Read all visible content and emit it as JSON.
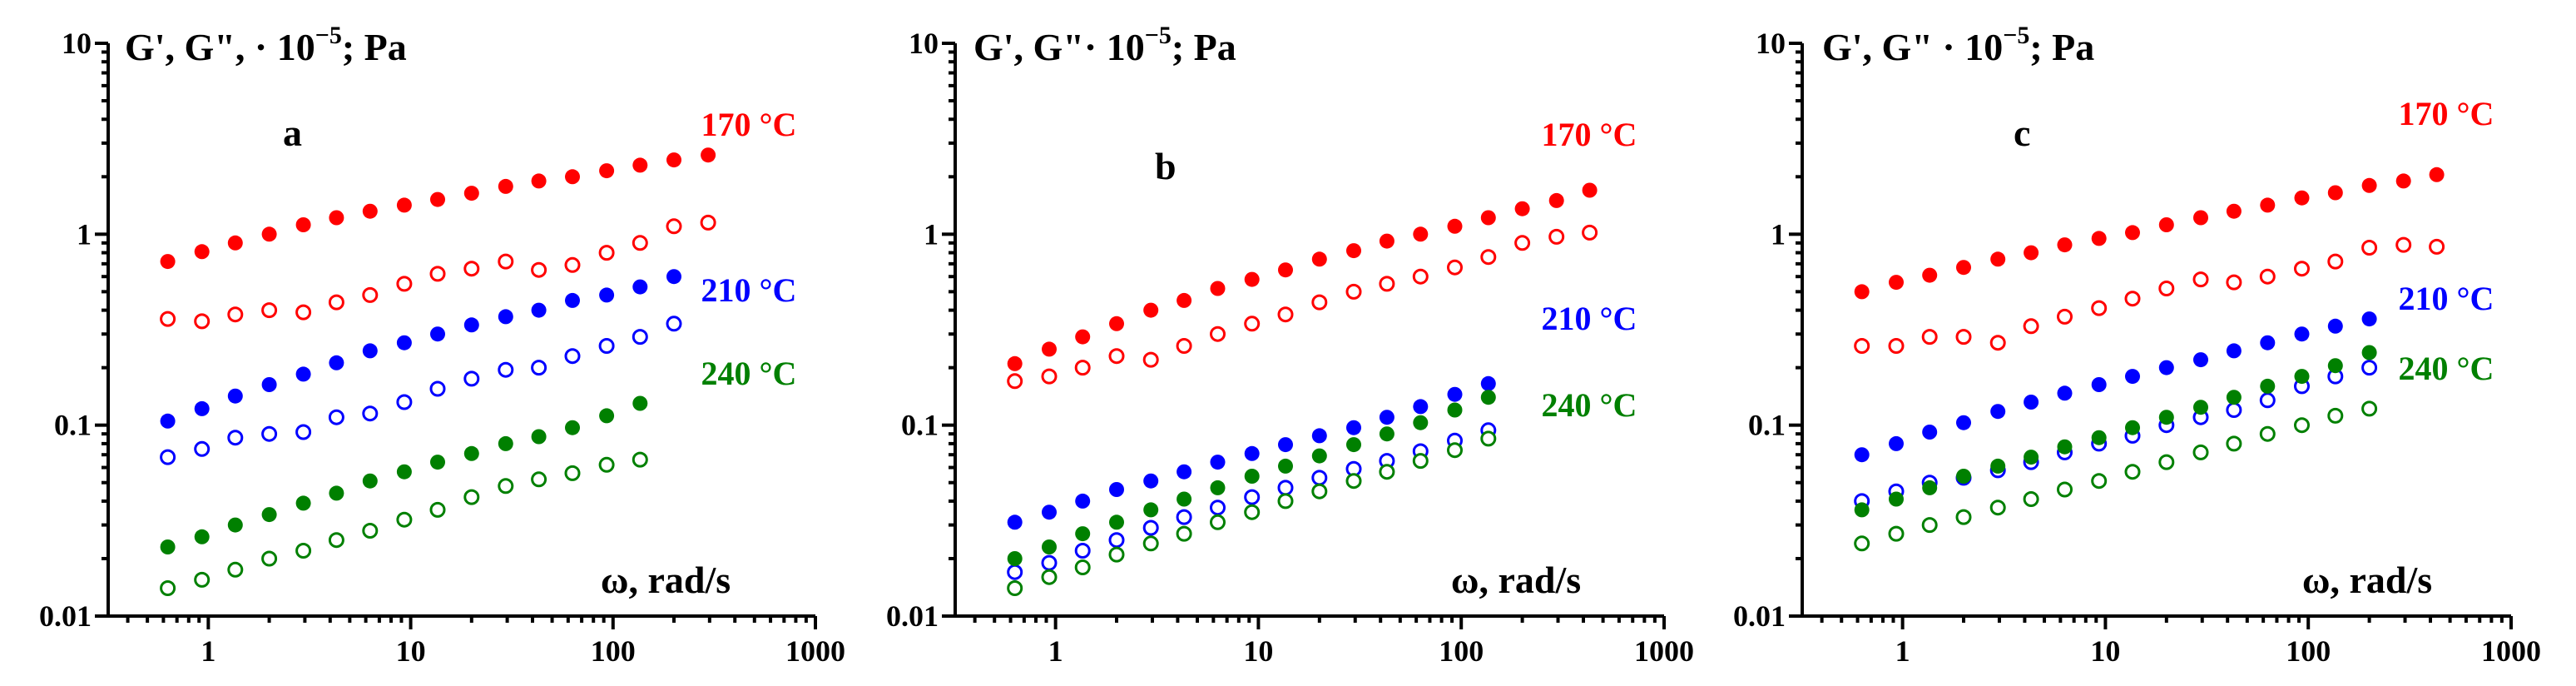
{
  "chart_data": [
    {
      "panel": "a",
      "type": "scatter",
      "title": "G', G\", · 10",
      "title_exp": "−5",
      "title_unit": "; Pa",
      "xlabel": "ω, rad/s",
      "xscale": "log",
      "yscale": "log",
      "xlim": [
        0.32,
        1000
      ],
      "ylim": [
        0.01,
        10
      ],
      "xticks": [
        1,
        10,
        100,
        1000
      ],
      "xtick_labels": [
        "1",
        "10",
        "100",
        "1000"
      ],
      "yticks": [
        0.01,
        0.1,
        1,
        10
      ],
      "ytick_labels": [
        "0.01",
        "0.1",
        "1",
        "10"
      ],
      "series": [
        {
          "name": "G' 170 °C",
          "color": "#ff0000",
          "filled": true,
          "x": [
            0.63,
            0.93,
            1.36,
            2.0,
            2.95,
            4.3,
            6.3,
            9.3,
            13.6,
            20,
            29.5,
            43,
            63,
            93,
            136,
            200,
            295
          ],
          "y": [
            0.72,
            0.81,
            0.9,
            1.0,
            1.12,
            1.22,
            1.32,
            1.42,
            1.52,
            1.64,
            1.78,
            1.9,
            2.0,
            2.15,
            2.3,
            2.45,
            2.6
          ]
        },
        {
          "name": "G\" 170 °C",
          "color": "#ff0000",
          "filled": false,
          "x": [
            0.63,
            0.93,
            1.36,
            2.0,
            2.95,
            4.3,
            6.3,
            9.3,
            13.6,
            20,
            29.5,
            43,
            63,
            93,
            136,
            200,
            295
          ],
          "y": [
            0.36,
            0.35,
            0.38,
            0.4,
            0.39,
            0.44,
            0.48,
            0.55,
            0.62,
            0.66,
            0.72,
            0.65,
            0.69,
            0.8,
            0.9,
            1.1,
            1.15
          ]
        },
        {
          "name": "G' 210 °C",
          "color": "#0000ff",
          "filled": true,
          "x": [
            0.63,
            0.93,
            1.36,
            2.0,
            2.95,
            4.3,
            6.3,
            9.3,
            13.6,
            20,
            29.5,
            43,
            63,
            93,
            136,
            200
          ],
          "y": [
            0.105,
            0.122,
            0.142,
            0.163,
            0.185,
            0.212,
            0.245,
            0.27,
            0.3,
            0.335,
            0.37,
            0.4,
            0.45,
            0.48,
            0.53,
            0.6
          ]
        },
        {
          "name": "G\" 210 °C",
          "color": "#0000ff",
          "filled": false,
          "x": [
            0.63,
            0.93,
            1.36,
            2.0,
            2.95,
            4.3,
            6.3,
            9.3,
            13.6,
            20,
            29.5,
            43,
            63,
            93,
            136,
            200
          ],
          "y": [
            0.068,
            0.075,
            0.086,
            0.09,
            0.092,
            0.11,
            0.115,
            0.132,
            0.155,
            0.175,
            0.195,
            0.2,
            0.23,
            0.26,
            0.29,
            0.34
          ]
        },
        {
          "name": "G' 240 °C",
          "color": "#008000",
          "filled": true,
          "x": [
            0.63,
            0.93,
            1.36,
            2.0,
            2.95,
            4.3,
            6.3,
            9.3,
            13.6,
            20,
            29.5,
            43,
            63,
            93,
            136
          ],
          "y": [
            0.023,
            0.026,
            0.03,
            0.034,
            0.039,
            0.044,
            0.051,
            0.057,
            0.064,
            0.071,
            0.08,
            0.087,
            0.097,
            0.112,
            0.13
          ]
        },
        {
          "name": "G\" 240 °C",
          "color": "#008000",
          "filled": false,
          "x": [
            0.63,
            0.93,
            1.36,
            2.0,
            2.95,
            4.3,
            6.3,
            9.3,
            13.6,
            20,
            29.5,
            43,
            63,
            93,
            136
          ],
          "y": [
            0.014,
            0.0155,
            0.0175,
            0.02,
            0.022,
            0.025,
            0.028,
            0.032,
            0.036,
            0.042,
            0.048,
            0.052,
            0.056,
            0.062,
            0.066
          ]
        }
      ],
      "labels": [
        {
          "text": "170 °C",
          "color": "#ff0000",
          "anchor": "top-right"
        },
        {
          "text": "210 °C",
          "color": "#0000ff",
          "anchor": "middle-right"
        },
        {
          "text": "240 °C",
          "color": "#008000",
          "anchor": "lower-right"
        }
      ]
    },
    {
      "panel": "b",
      "type": "scatter",
      "title": "G', G\"· 10",
      "title_exp": "−5",
      "title_unit": "; Pa",
      "xlabel": "ω, rad/s",
      "xscale": "log",
      "yscale": "log",
      "xlim": [
        0.32,
        1000
      ],
      "ylim": [
        0.01,
        10
      ],
      "xticks": [
        1,
        10,
        100,
        1000
      ],
      "xtick_labels": [
        "1",
        "10",
        "100",
        "1000"
      ],
      "yticks": [
        0.01,
        0.1,
        1,
        10
      ],
      "ytick_labels": [
        "0.01",
        "0.1",
        "1",
        "10"
      ],
      "series": [
        {
          "name": "G' 170 °C",
          "color": "#ff0000",
          "filled": true,
          "x": [
            0.63,
            0.93,
            1.36,
            2.0,
            2.95,
            4.3,
            6.3,
            9.3,
            13.6,
            20,
            29.5,
            43,
            63,
            93,
            136,
            200,
            295,
            430
          ],
          "y": [
            0.21,
            0.25,
            0.29,
            0.34,
            0.4,
            0.45,
            0.52,
            0.58,
            0.65,
            0.74,
            0.82,
            0.92,
            1.0,
            1.1,
            1.22,
            1.36,
            1.5,
            1.7
          ]
        },
        {
          "name": "G\" 170 °C",
          "color": "#ff0000",
          "filled": false,
          "x": [
            0.63,
            0.93,
            1.36,
            2.0,
            2.95,
            4.3,
            6.3,
            9.3,
            13.6,
            20,
            29.5,
            43,
            63,
            93,
            136,
            200,
            295,
            430
          ],
          "y": [
            0.17,
            0.18,
            0.2,
            0.23,
            0.22,
            0.26,
            0.3,
            0.34,
            0.38,
            0.44,
            0.5,
            0.55,
            0.6,
            0.67,
            0.76,
            0.9,
            0.97,
            1.02
          ]
        },
        {
          "name": "G' 210 °C",
          "color": "#0000ff",
          "filled": true,
          "x": [
            0.63,
            0.93,
            1.36,
            2.0,
            2.95,
            4.3,
            6.3,
            9.3,
            13.6,
            20,
            29.5,
            43,
            63,
            93,
            136
          ],
          "y": [
            0.031,
            0.035,
            0.04,
            0.046,
            0.051,
            0.057,
            0.064,
            0.071,
            0.079,
            0.088,
            0.097,
            0.11,
            0.125,
            0.145,
            0.165
          ]
        },
        {
          "name": "G\" 210 °C",
          "color": "#0000ff",
          "filled": false,
          "x": [
            0.63,
            0.93,
            1.36,
            2.0,
            2.95,
            4.3,
            6.3,
            9.3,
            13.6,
            20,
            29.5,
            43,
            63,
            93,
            136
          ],
          "y": [
            0.017,
            0.019,
            0.022,
            0.025,
            0.029,
            0.033,
            0.037,
            0.042,
            0.047,
            0.053,
            0.059,
            0.065,
            0.073,
            0.083,
            0.094
          ]
        },
        {
          "name": "G' 240 °C",
          "color": "#008000",
          "filled": true,
          "x": [
            0.63,
            0.93,
            1.36,
            2.0,
            2.95,
            4.3,
            6.3,
            9.3,
            13.6,
            20,
            29.5,
            43,
            63,
            93,
            136
          ],
          "y": [
            0.02,
            0.023,
            0.027,
            0.031,
            0.036,
            0.041,
            0.047,
            0.054,
            0.061,
            0.069,
            0.079,
            0.09,
            0.103,
            0.12,
            0.14
          ]
        },
        {
          "name": "G\" 240 °C",
          "color": "#008000",
          "filled": false,
          "x": [
            0.63,
            0.93,
            1.36,
            2.0,
            2.95,
            4.3,
            6.3,
            9.3,
            13.6,
            20,
            29.5,
            43,
            63,
            93,
            136
          ],
          "y": [
            0.014,
            0.016,
            0.018,
            0.021,
            0.024,
            0.027,
            0.031,
            0.035,
            0.04,
            0.045,
            0.051,
            0.057,
            0.065,
            0.074,
            0.085
          ]
        }
      ],
      "labels": [
        {
          "text": "170 °C",
          "color": "#ff0000",
          "anchor": "top-right"
        },
        {
          "text": "210 °C",
          "color": "#0000ff",
          "anchor": "middle-right"
        },
        {
          "text": "240 °C",
          "color": "#008000",
          "anchor": "lower-right"
        }
      ]
    },
    {
      "panel": "c",
      "type": "scatter",
      "title": "G', G\" · 10",
      "title_exp": "−5",
      "title_unit": "; Pa",
      "xlabel": "ω, rad/s",
      "xscale": "log",
      "yscale": "log",
      "xlim": [
        0.32,
        1000
      ],
      "ylim": [
        0.01,
        10
      ],
      "xticks": [
        1,
        10,
        100,
        1000
      ],
      "xtick_labels": [
        "1",
        "10",
        "100",
        "1000"
      ],
      "yticks": [
        0.01,
        0.1,
        1,
        10
      ],
      "ytick_labels": [
        "0.01",
        "0.1",
        "1",
        "10"
      ],
      "series": [
        {
          "name": "G' 170 °C",
          "color": "#ff0000",
          "filled": true,
          "x": [
            0.63,
            0.93,
            1.36,
            2.0,
            2.95,
            4.3,
            6.3,
            9.3,
            13.6,
            20,
            29.5,
            43,
            63,
            93,
            136,
            200,
            295,
            430
          ],
          "y": [
            0.5,
            0.56,
            0.61,
            0.67,
            0.74,
            0.8,
            0.88,
            0.95,
            1.02,
            1.12,
            1.22,
            1.32,
            1.42,
            1.55,
            1.65,
            1.8,
            1.9,
            2.05
          ]
        },
        {
          "name": "G\" 170 °C",
          "color": "#ff0000",
          "filled": false,
          "x": [
            0.63,
            0.93,
            1.36,
            2.0,
            2.95,
            4.3,
            6.3,
            9.3,
            13.6,
            20,
            29.5,
            43,
            63,
            93,
            136,
            200,
            295,
            430
          ],
          "y": [
            0.26,
            0.26,
            0.29,
            0.29,
            0.27,
            0.33,
            0.37,
            0.41,
            0.46,
            0.52,
            0.58,
            0.56,
            0.6,
            0.66,
            0.72,
            0.85,
            0.88,
            0.86
          ]
        },
        {
          "name": "G' 210 °C",
          "color": "#0000ff",
          "filled": true,
          "x": [
            0.63,
            0.93,
            1.36,
            2.0,
            2.95,
            4.3,
            6.3,
            9.3,
            13.6,
            20,
            29.5,
            43,
            63,
            93,
            136,
            200
          ],
          "y": [
            0.07,
            0.08,
            0.092,
            0.103,
            0.118,
            0.132,
            0.147,
            0.163,
            0.18,
            0.2,
            0.22,
            0.245,
            0.27,
            0.3,
            0.33,
            0.36
          ]
        },
        {
          "name": "G\" 210 °C",
          "color": "#0000ff",
          "filled": false,
          "x": [
            0.63,
            0.93,
            1.36,
            2.0,
            2.95,
            4.3,
            6.3,
            9.3,
            13.6,
            20,
            29.5,
            43,
            63,
            93,
            136,
            200
          ],
          "y": [
            0.04,
            0.045,
            0.05,
            0.053,
            0.058,
            0.064,
            0.072,
            0.08,
            0.088,
            0.1,
            0.11,
            0.12,
            0.135,
            0.16,
            0.18,
            0.2
          ]
        },
        {
          "name": "G' 240 °C",
          "color": "#008000",
          "filled": true,
          "x": [
            0.63,
            0.93,
            1.36,
            2.0,
            2.95,
            4.3,
            6.3,
            9.3,
            13.6,
            20,
            29.5,
            43,
            63,
            93,
            136,
            200
          ],
          "y": [
            0.036,
            0.041,
            0.047,
            0.054,
            0.061,
            0.068,
            0.077,
            0.086,
            0.097,
            0.11,
            0.124,
            0.14,
            0.16,
            0.18,
            0.205,
            0.24
          ]
        },
        {
          "name": "G\" 240 °C",
          "color": "#008000",
          "filled": false,
          "x": [
            0.63,
            0.93,
            1.36,
            2.0,
            2.95,
            4.3,
            6.3,
            9.3,
            13.6,
            20,
            29.5,
            43,
            63,
            93,
            136,
            200
          ],
          "y": [
            0.024,
            0.027,
            0.03,
            0.033,
            0.037,
            0.041,
            0.046,
            0.051,
            0.057,
            0.064,
            0.072,
            0.08,
            0.09,
            0.1,
            0.112,
            0.122
          ]
        }
      ],
      "labels": [
        {
          "text": "170 °C",
          "color": "#ff0000",
          "anchor": "top-right"
        },
        {
          "text": "210 °C",
          "color": "#0000ff",
          "anchor": "middle-right"
        },
        {
          "text": "240 °C",
          "color": "#008000",
          "anchor": "lower-right"
        }
      ]
    }
  ]
}
